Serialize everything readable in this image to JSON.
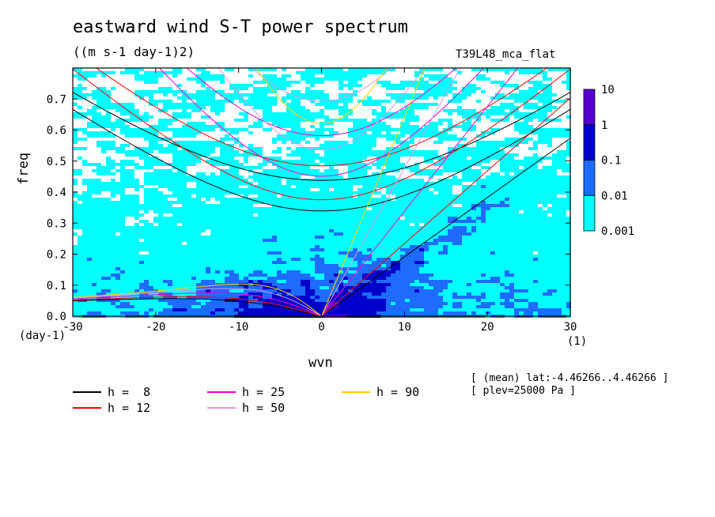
{
  "chart_data": {
    "type": "heatmap",
    "title": "eastward wind S-T power spectrum",
    "units": "((m s-1 day-1)2)",
    "experiment": "T39L48_mca_flat",
    "xlabel": "wvn",
    "xunit": "(1)",
    "ylabel": "freq",
    "yunit": "(day-1)",
    "xlim": [
      -30,
      30
    ],
    "ylim": [
      0,
      0.8
    ],
    "x_ticks": [
      -30,
      -20,
      -10,
      0,
      10,
      20,
      30
    ],
    "y_ticks": [
      0.0,
      0.1,
      0.2,
      0.3,
      0.4,
      0.5,
      0.6,
      0.7
    ],
    "x_tick_labels": [
      "-30",
      "-20",
      "-10",
      "0",
      "10",
      "20",
      "30"
    ],
    "y_tick_labels": [
      "0.0",
      "0.1",
      "0.2",
      "0.3",
      "0.4",
      "0.5",
      "0.6",
      "0.7"
    ],
    "colorbar": {
      "labels": [
        "10",
        "1",
        "0.1",
        "0.01",
        "0.001"
      ],
      "levels": [
        0.001,
        0.01,
        0.1,
        1,
        10
      ],
      "colors": [
        "#00ffff",
        "#1e6bff",
        "#0000cd",
        "#5500cc"
      ]
    },
    "dispersion_curves": [
      {
        "label": "h =  8",
        "h": 8,
        "color": "#000000"
      },
      {
        "label": "h = 12",
        "h": 12,
        "color": "#ff0000"
      },
      {
        "label": "h = 25",
        "h": 25,
        "color": "#ff00cc"
      },
      {
        "label": "h = 50",
        "h": 50,
        "color": "#dd99dd"
      },
      {
        "label": "h = 90",
        "h": 90,
        "color": "#ffcc00"
      }
    ],
    "annotations": [
      "[ (mean) lat:-4.46266..4.46266 ]",
      "[ plev=25000 Pa ]"
    ],
    "grid": false,
    "legend_position": "bottom-left"
  }
}
